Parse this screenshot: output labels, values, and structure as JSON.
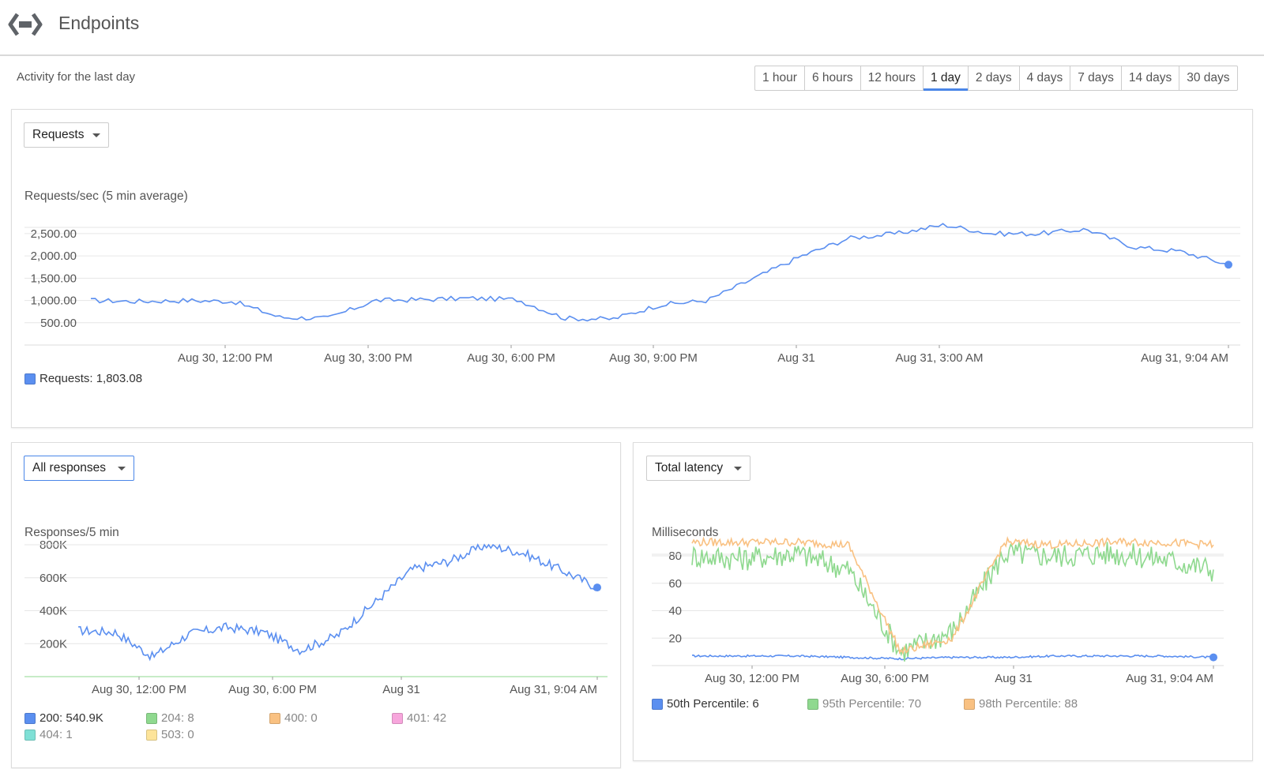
{
  "header": {
    "title": "Endpoints",
    "logo_icon": "endpoints-brackets-icon"
  },
  "subheader": "Activity for the last day",
  "time_ranges": {
    "options": [
      "1 hour",
      "6 hours",
      "12 hours",
      "1 day",
      "2 days",
      "4 days",
      "7 days",
      "14 days",
      "30 days"
    ],
    "selected": "1 day"
  },
  "colors": {
    "accent": "#4a86e8",
    "series_blue": "#5b8ff0",
    "series_green": "#8fd98f",
    "series_orange": "#f9c182",
    "grid": "#e6e6e6"
  },
  "requests_panel": {
    "dropdown": "Requests",
    "axis_title": "Requests/sec (5 min average)",
    "legend": [
      {
        "label": "Requests: 1,803.08",
        "color": "#5b8ff0"
      }
    ]
  },
  "responses_panel": {
    "dropdown": "All responses",
    "axis_title": "Responses/5 min",
    "legend": [
      {
        "label": "200: 540.9K",
        "color": "#5b8ff0",
        "muted": false
      },
      {
        "label": "204: 8",
        "color": "#8fd98f",
        "muted": true
      },
      {
        "label": "400: 0",
        "color": "#f9c182",
        "muted": true
      },
      {
        "label": "401: 42",
        "color": "#f7a6dc",
        "muted": true
      },
      {
        "label": "404: 1",
        "color": "#7fe0d6",
        "muted": true
      },
      {
        "label": "503: 0",
        "color": "#fde49a",
        "muted": true
      }
    ]
  },
  "latency_panel": {
    "dropdown": "Total latency",
    "axis_title": "Milliseconds",
    "legend": [
      {
        "label": "50th Percentile: 6",
        "color": "#5b8ff0",
        "muted": false
      },
      {
        "label": "95th Percentile: 70",
        "color": "#8fd98f",
        "muted": true
      },
      {
        "label": "98th Percentile: 88",
        "color": "#f9c182",
        "muted": true
      }
    ]
  },
  "chart_data": [
    {
      "type": "line",
      "ylabel": "Requests/sec (5 min average)",
      "x": [
        "Aug 30, 9:04 AM",
        "Aug 30, 10:30 AM",
        "Aug 30, 11:30 AM",
        "Aug 30, 12:30 PM",
        "Aug 30, 1:30 PM",
        "Aug 30, 2:30 PM",
        "Aug 30, 3:00 PM",
        "Aug 30, 4:00 PM",
        "Aug 30, 5:00 PM",
        "Aug 30, 6:00 PM",
        "Aug 30, 7:00 PM",
        "Aug 30, 8:00 PM",
        "Aug 30, 9:00 PM",
        "Aug 30, 10:00 PM",
        "Aug 30, 11:00 PM",
        "Aug 31, 12:00 AM",
        "Aug 31, 1:00 AM",
        "Aug 31, 2:00 AM",
        "Aug 31, 3:00 AM",
        "Aug 31, 4:00 AM",
        "Aug 31, 5:00 AM",
        "Aug 31, 6:00 AM",
        "Aug 31, 7:00 AM",
        "Aug 31, 8:00 AM",
        "Aug 31, 9:04 AM"
      ],
      "y_ticks": [
        500,
        1000,
        1500,
        2000,
        2500
      ],
      "x_ticks": [
        "Aug 30, 12:00 PM",
        "Aug 30, 3:00 PM",
        "Aug 30, 6:00 PM",
        "Aug 30, 9:00 PM",
        "Aug 31",
        "Aug 31, 3:00 AM",
        "Aug 31, 9:04 AM"
      ],
      "ylim": [
        0,
        2800
      ],
      "series": [
        {
          "name": "Requests",
          "values": [
            1000,
            980,
            1000,
            980,
            620,
            600,
            1000,
            1020,
            1050,
            1020,
            600,
            580,
            900,
            1000,
            1500,
            2000,
            2400,
            2500,
            2700,
            2500,
            2500,
            2600,
            2200,
            2100,
            1803
          ]
        }
      ],
      "grid": true
    },
    {
      "type": "line",
      "ylabel": "Responses/5 min",
      "x": [
        "Aug 30, 9:04 AM",
        "Aug 30, 11:00 AM",
        "Aug 30, 12:00 PM",
        "Aug 30, 1:00 PM",
        "Aug 30, 3:00 PM",
        "Aug 30, 5:00 PM",
        "Aug 30, 6:30 PM",
        "Aug 30, 8:00 PM",
        "Aug 30, 10:00 PM",
        "Aug 31",
        "Aug 31, 2:00 AM",
        "Aug 31, 4:00 AM",
        "Aug 31, 6:00 AM",
        "Aug 31, 8:00 AM",
        "Aug 31, 9:04 AM"
      ],
      "y_ticks": [
        "200K",
        "400K",
        "600K",
        "800K"
      ],
      "x_ticks": [
        "Aug 30, 12:00 PM",
        "Aug 30, 6:00 PM",
        "Aug 31",
        "Aug 31, 9:04 AM"
      ],
      "ylim": [
        0,
        800000
      ],
      "series": [
        {
          "name": "200",
          "values": [
            280000,
            270000,
            120000,
            260000,
            300000,
            270000,
            160000,
            250000,
            450000,
            650000,
            700000,
            800000,
            750000,
            650000,
            540900
          ]
        }
      ],
      "grid": true
    },
    {
      "type": "line",
      "ylabel": "Milliseconds",
      "x": [
        "Aug 30, 9:04 AM",
        "Aug 30, 12:00 PM",
        "Aug 30, 3:00 PM",
        "Aug 30, 5:00 PM",
        "Aug 30, 6:00 PM",
        "Aug 30, 7:00 PM",
        "Aug 30, 9:00 PM",
        "Aug 31",
        "Aug 31, 3:00 AM",
        "Aug 31, 6:00 AM",
        "Aug 31, 9:04 AM"
      ],
      "y_ticks": [
        20,
        40,
        60,
        80
      ],
      "x_ticks": [
        "Aug 30, 12:00 PM",
        "Aug 30, 6:00 PM",
        "Aug 31",
        "Aug 31, 9:04 AM"
      ],
      "ylim": [
        0,
        95
      ],
      "series": [
        {
          "name": "50th Percentile",
          "values": [
            7,
            7,
            7,
            6,
            5,
            6,
            6,
            7,
            7,
            7,
            6
          ]
        },
        {
          "name": "95th Percentile",
          "values": [
            80,
            78,
            82,
            70,
            10,
            25,
            82,
            80,
            82,
            78,
            70
          ]
        },
        {
          "name": "98th Percentile",
          "values": [
            90,
            90,
            90,
            88,
            10,
            20,
            90,
            88,
            90,
            90,
            88
          ]
        }
      ],
      "grid": true
    }
  ]
}
